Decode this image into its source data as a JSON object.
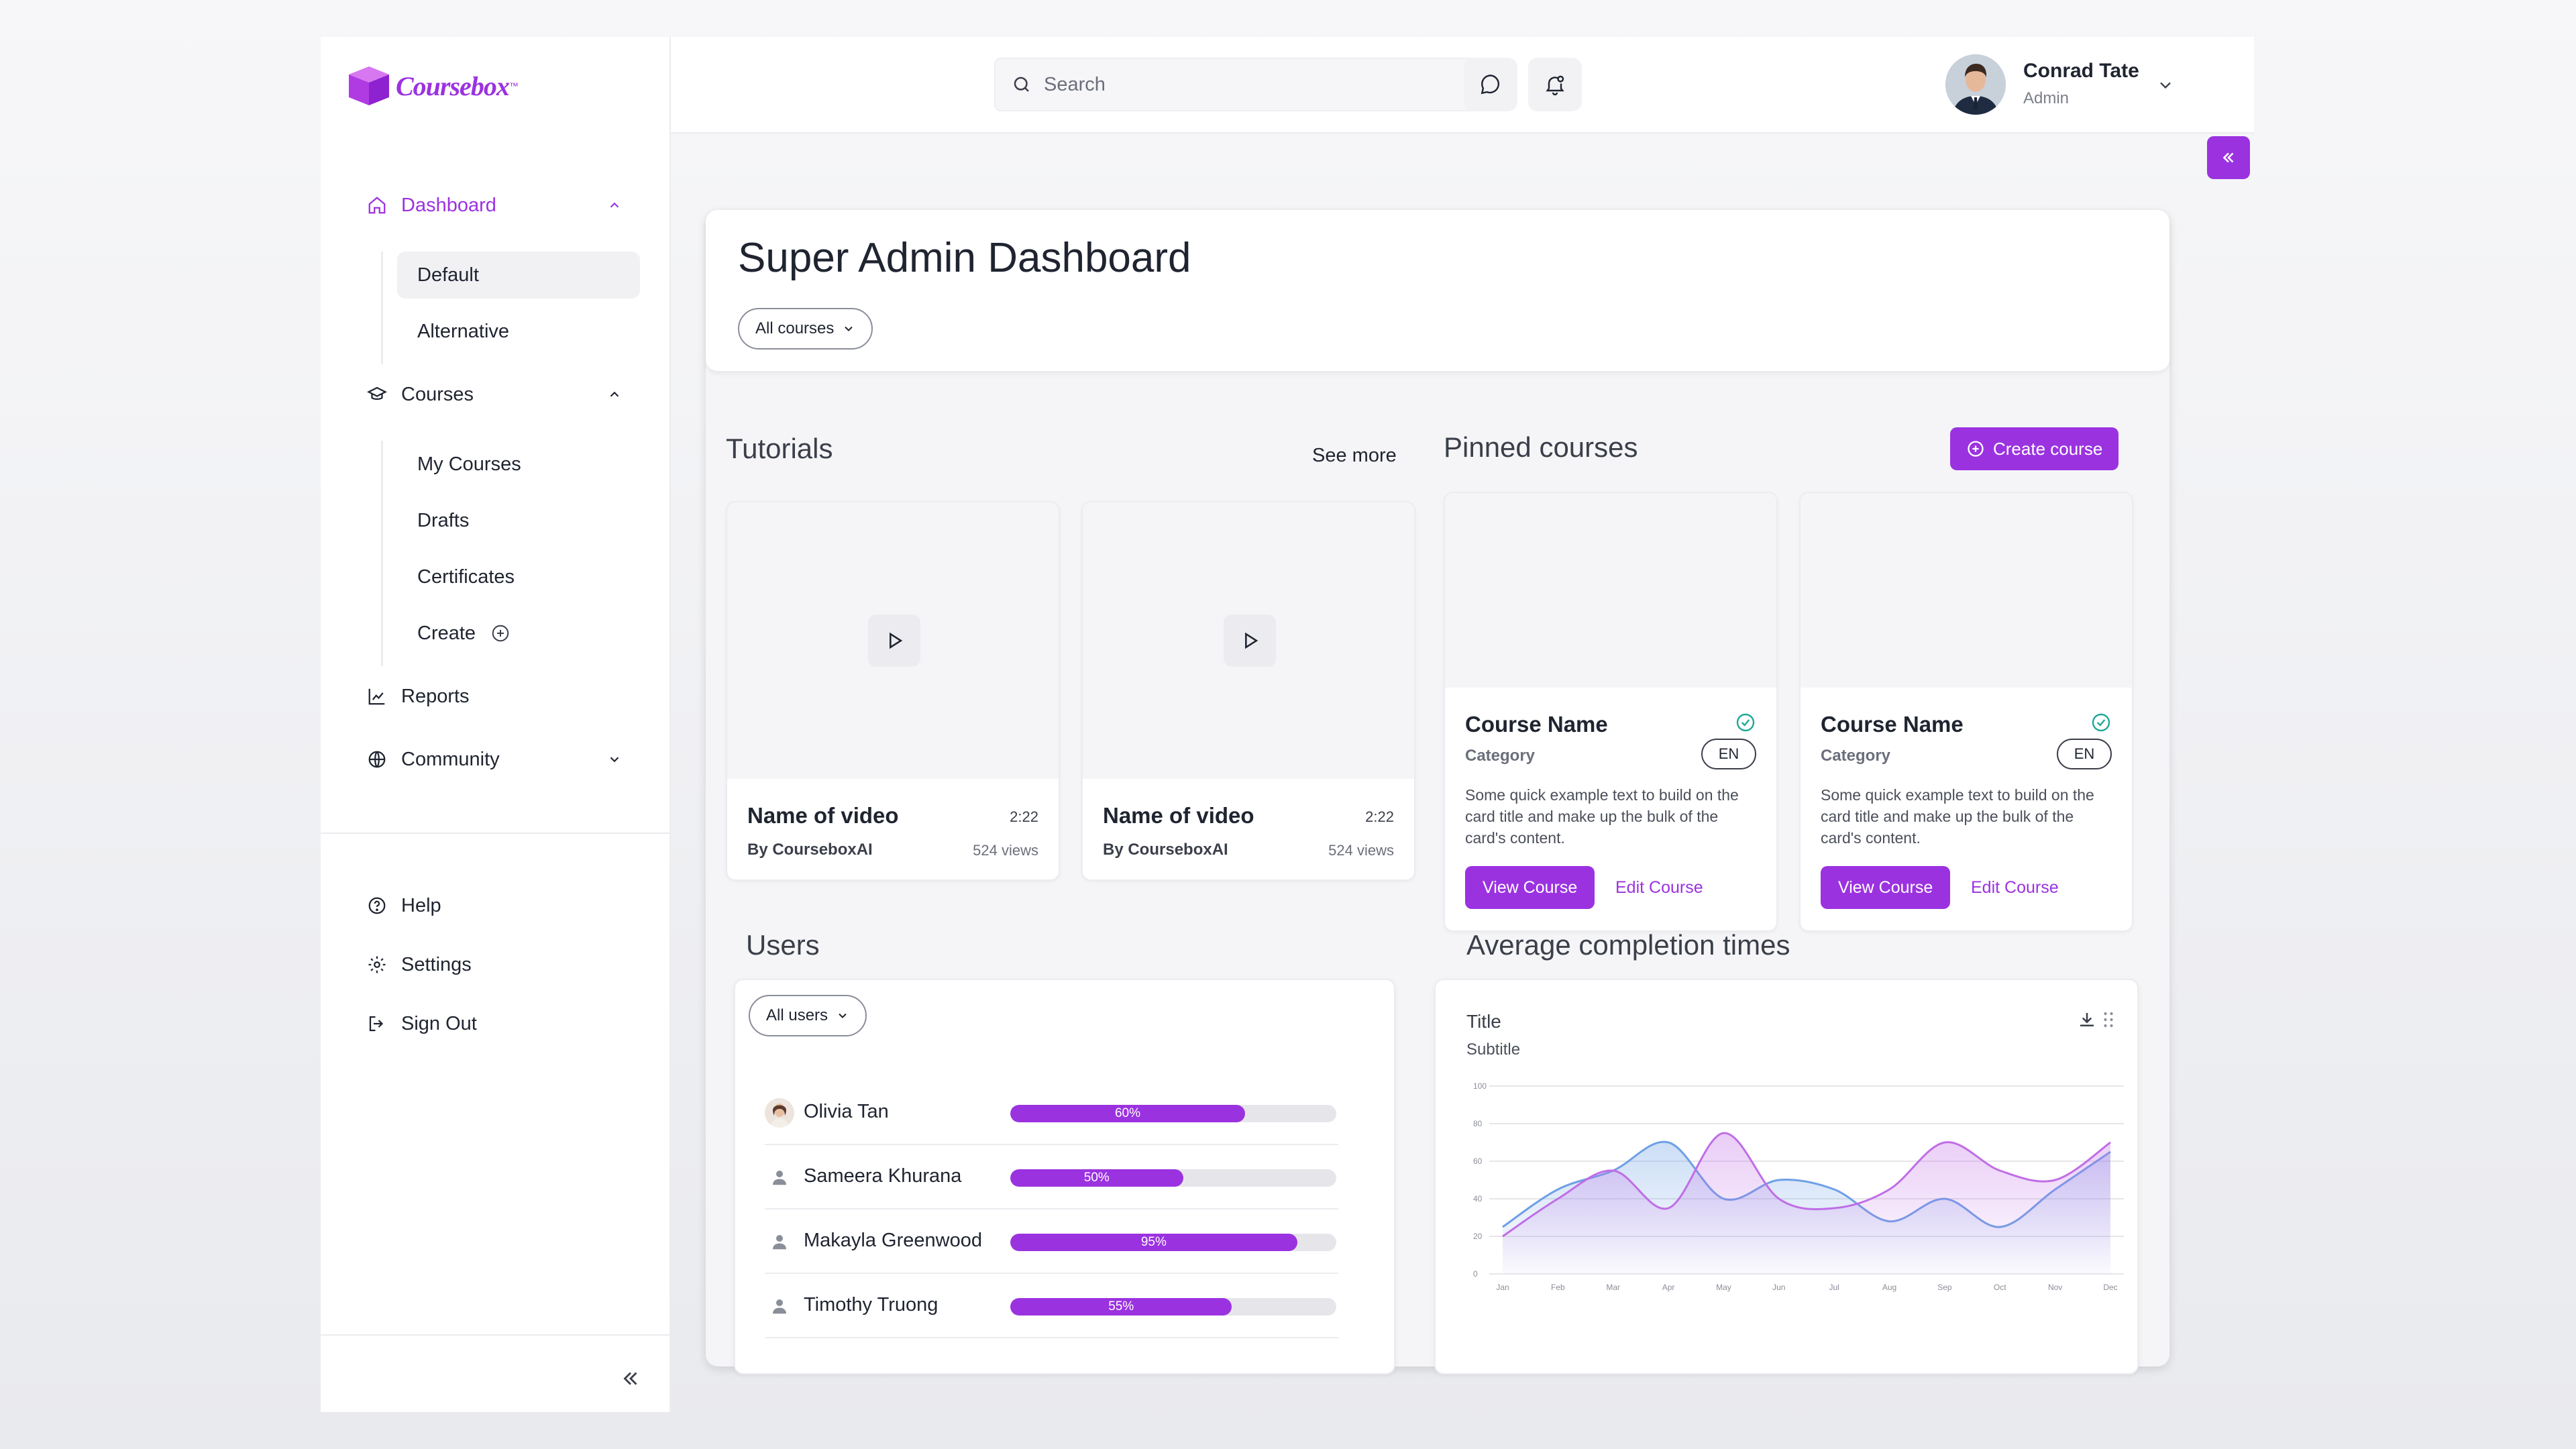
{
  "brand": {
    "name": "Coursebox",
    "tm": "™"
  },
  "sidebar": {
    "dashboard": "Dashboard",
    "dashboard_children": [
      "Default",
      "Alternative"
    ],
    "courses": "Courses",
    "courses_children": [
      "My Courses",
      "Drafts",
      "Certificates",
      "Create"
    ],
    "reports": "Reports",
    "community": "Community",
    "help": "Help",
    "settings": "Settings",
    "sign_out": "Sign Out"
  },
  "header": {
    "search_placeholder": "Search",
    "user_name": "Conrad Tate",
    "user_role": "Admin"
  },
  "page": {
    "title": "Super Admin Dashboard",
    "filter": "All courses"
  },
  "tutorials": {
    "title": "Tutorials",
    "see_more": "See more",
    "items": [
      {
        "name": "Name of video",
        "duration": "2:22",
        "by": "By CourseboxAI",
        "views": "524 views"
      },
      {
        "name": "Name of video",
        "duration": "2:22",
        "by": "By CourseboxAI",
        "views": "524 views"
      }
    ]
  },
  "pinned": {
    "title": "Pinned courses",
    "create_label": "Create course",
    "items": [
      {
        "name": "Course Name",
        "category": "Category",
        "lang": "EN",
        "desc": "Some quick example text to build on the card title and make up the bulk of the card's content.",
        "view": "View Course",
        "edit": "Edit Course"
      },
      {
        "name": "Course Name",
        "category": "Category",
        "lang": "EN",
        "desc": "Some quick example text to build on the card title and make up the bulk of the card's content.",
        "view": "View Course",
        "edit": "Edit Course"
      }
    ]
  },
  "users": {
    "title": "Users",
    "filter": "All users",
    "items": [
      {
        "name": "Olivia Tan",
        "progress": 60,
        "label": "60%"
      },
      {
        "name": "Sameera Khurana",
        "progress": 50,
        "label": "50%"
      },
      {
        "name": "Makayla Greenwood",
        "progress": 95,
        "label": "95%"
      },
      {
        "name": "Timothy Truong",
        "progress": 55,
        "label": "55%"
      }
    ]
  },
  "completion": {
    "title": "Average completion times"
  },
  "chart_data": {
    "type": "area",
    "title": "Title",
    "subtitle": "Subtitle",
    "categories": [
      "Jan",
      "Feb",
      "Mar",
      "Apr",
      "May",
      "Jun",
      "Jul",
      "Aug",
      "Sep",
      "Oct",
      "Nov",
      "Dec"
    ],
    "ylim": [
      0,
      100
    ],
    "yticks": [
      0,
      20,
      40,
      60,
      80,
      100
    ],
    "grid": true,
    "series": [
      {
        "values": [
          25,
          45,
          55,
          70,
          40,
          50,
          45,
          28,
          40,
          25,
          45,
          65
        ],
        "color": "#6ea0e6"
      },
      {
        "values": [
          20,
          40,
          55,
          35,
          75,
          40,
          35,
          45,
          70,
          55,
          50,
          70
        ],
        "color": "#c06ee6"
      }
    ]
  },
  "colors": {
    "accent": "#9b32e0",
    "series_blue": "#6ea0e6",
    "series_purple": "#c06ee6"
  }
}
